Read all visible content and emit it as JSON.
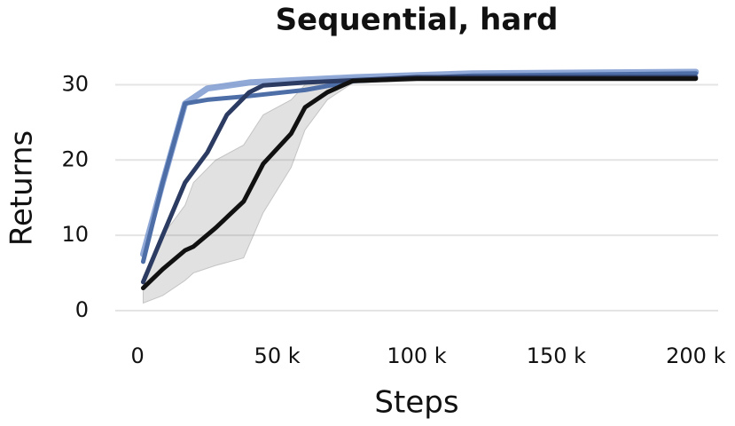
{
  "chart_data": {
    "type": "line",
    "title": "Sequential, hard",
    "x_label": "Steps",
    "y_label": "Returns",
    "xlim": [
      -8000,
      208000
    ],
    "ylim": [
      0,
      33
    ],
    "xticks": [
      0,
      {
        "value": 50000,
        "label": "50 k"
      },
      {
        "value": 100000,
        "label": "100 k"
      },
      {
        "value": 150000,
        "label": "150 k"
      },
      {
        "value": 200000,
        "label": "200 k"
      }
    ],
    "yticks": [
      0,
      10,
      20,
      30
    ],
    "grid": true,
    "series": [
      {
        "color": "#7d9ad0",
        "x": [
          2000,
          9000,
          17000,
          25000,
          40000,
          78000,
          120000,
          200000
        ],
        "values": [
          7.5,
          17,
          27.5,
          29.5,
          30.3,
          31,
          31.5,
          31.7
        ]
      },
      {
        "color": "#4e6ea8",
        "x": [
          2000,
          9000,
          17000,
          25000,
          40000,
          60000,
          78000,
          120000,
          200000
        ],
        "values": [
          6.5,
          17,
          27.5,
          28,
          28.5,
          29.3,
          30.5,
          31.2,
          31.5
        ]
      },
      {
        "color": "#2c3b62",
        "x": [
          2000,
          9000,
          17000,
          25000,
          32000,
          40000,
          45000,
          60000,
          78000,
          100000,
          200000
        ],
        "values": [
          3.8,
          10,
          17,
          21,
          26,
          29,
          29.9,
          30.3,
          30.6,
          31,
          31
        ]
      },
      {
        "color": "#111111",
        "x": [
          2000,
          9000,
          17000,
          20000,
          28000,
          38000,
          45000,
          55000,
          60000,
          68000,
          77000,
          100000,
          200000
        ],
        "values": [
          3,
          5.5,
          8,
          8.5,
          11,
          14.5,
          19.5,
          23.5,
          27,
          29,
          30.5,
          30.8,
          30.8
        ],
        "lower": [
          1,
          2,
          4,
          5,
          6,
          7,
          13,
          19,
          24,
          28,
          30.2,
          30.5,
          30.5
        ],
        "upper": [
          4.5,
          10,
          14,
          17,
          20,
          22,
          26,
          28,
          30,
          30.8,
          31,
          31,
          31
        ]
      }
    ]
  }
}
